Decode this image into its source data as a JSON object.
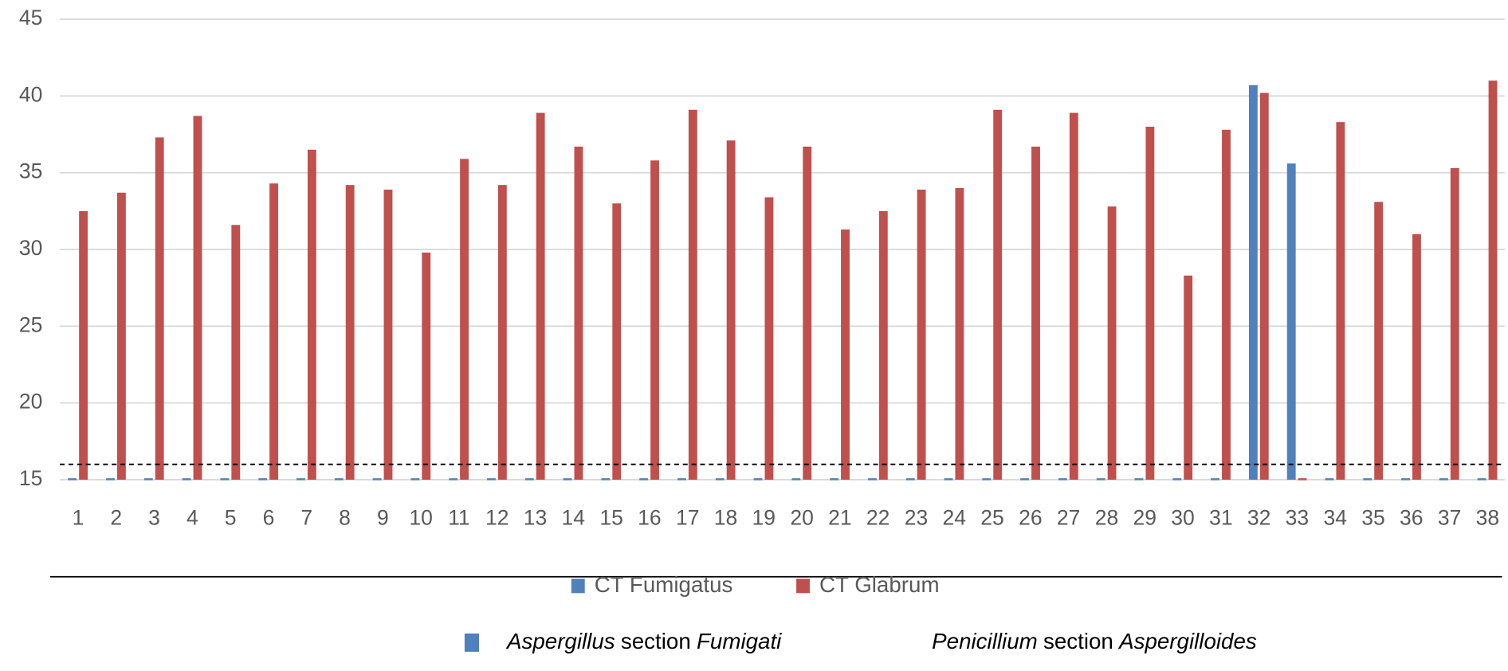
{
  "chart_data": {
    "type": "bar",
    "categories": [
      "1",
      "2",
      "3",
      "4",
      "5",
      "6",
      "7",
      "8",
      "9",
      "10",
      "11",
      "12",
      "13",
      "14",
      "15",
      "16",
      "17",
      "18",
      "19",
      "20",
      "21",
      "22",
      "23",
      "24",
      "25",
      "26",
      "27",
      "28",
      "29",
      "30",
      "31",
      "32",
      "33",
      "34",
      "35",
      "36",
      "37",
      "38"
    ],
    "series": [
      {
        "name": "CT Fumigatus",
        "color": "#4f81bd",
        "values": [
          15,
          15,
          15,
          15,
          15,
          15,
          15,
          15,
          15,
          15,
          15,
          15,
          15,
          15,
          15,
          15,
          15,
          15,
          15,
          15,
          15,
          15,
          15,
          15,
          15,
          15,
          15,
          15,
          15,
          15,
          15,
          40.7,
          35.6,
          15,
          15,
          15,
          15,
          15
        ]
      },
      {
        "name": "CT Glabrum",
        "color": "#c0504d",
        "values": [
          32.5,
          33.7,
          37.3,
          38.7,
          31.6,
          34.3,
          36.5,
          34.2,
          33.9,
          29.8,
          35.9,
          34.2,
          38.9,
          36.7,
          33.0,
          35.8,
          39.1,
          37.1,
          33.4,
          36.7,
          31.3,
          32.5,
          33.9,
          34.0,
          39.1,
          36.7,
          38.9,
          32.8,
          38.0,
          28.3,
          37.8,
          40.2,
          15,
          38.3,
          33.1,
          31.0,
          35.3,
          41.0
        ]
      }
    ],
    "ylim": [
      15,
      45
    ],
    "yticks": [
      15,
      20,
      25,
      30,
      35,
      40,
      45
    ],
    "grid": true,
    "reference_line": 16,
    "footnote_legend": [
      {
        "color": "#4f81bd",
        "parts": [
          "Aspergillus",
          "section",
          "Fumigati"
        ]
      },
      {
        "parts": [
          "Penicillium",
          "section",
          "Aspergilloides"
        ]
      }
    ]
  }
}
